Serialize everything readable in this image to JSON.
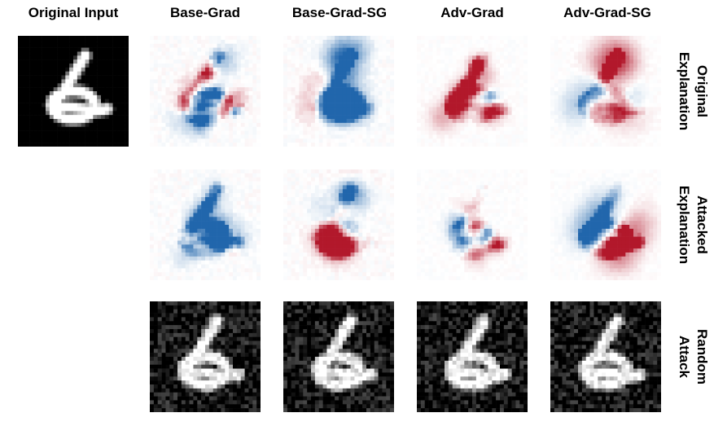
{
  "column_titles": [
    "Original Input",
    "Base-Grad",
    "Base-Grad-SG",
    "Adv-Grad",
    "Adv-Grad-SG"
  ],
  "row_labels": [
    {
      "line1": "Original",
      "line2": "Explanation"
    },
    {
      "line1": "Attacked",
      "line2": "Explanation"
    },
    {
      "line1": "Random",
      "line2": "Attack"
    }
  ],
  "colors": {
    "positive": "#b2182b",
    "negative": "#2166ac",
    "background_map": "#ffffff",
    "background_image": "#000000"
  }
}
